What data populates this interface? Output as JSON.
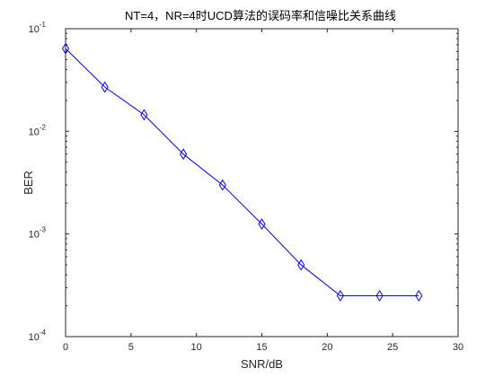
{
  "chart_data": {
    "type": "line",
    "title": "NT=4，NR=4时UCD算法的误码率和信噪比关系曲线",
    "xlabel": "SNR/dB",
    "ylabel": "BER",
    "yscale": "log",
    "xlim": [
      0,
      30
    ],
    "ylim": [
      0.0001,
      0.1
    ],
    "grid": false,
    "x_ticks": [
      0,
      5,
      10,
      15,
      20,
      25,
      30
    ],
    "y_ticks": [
      {
        "value": 0.0001,
        "base": "10",
        "exp": "-4"
      },
      {
        "value": 0.001,
        "base": "10",
        "exp": "-3"
      },
      {
        "value": 0.01,
        "base": "10",
        "exp": "-2"
      },
      {
        "value": 0.1,
        "base": "10",
        "exp": "-1"
      }
    ],
    "series": [
      {
        "color": "#0000ff",
        "marker": "diamond",
        "x": [
          0,
          3,
          6,
          9,
          12,
          15,
          18,
          21,
          24,
          27
        ],
        "y": [
          0.064,
          0.027,
          0.0145,
          0.006,
          0.003,
          0.00125,
          0.0005,
          0.00025,
          0.00025,
          0.00025
        ]
      }
    ]
  }
}
